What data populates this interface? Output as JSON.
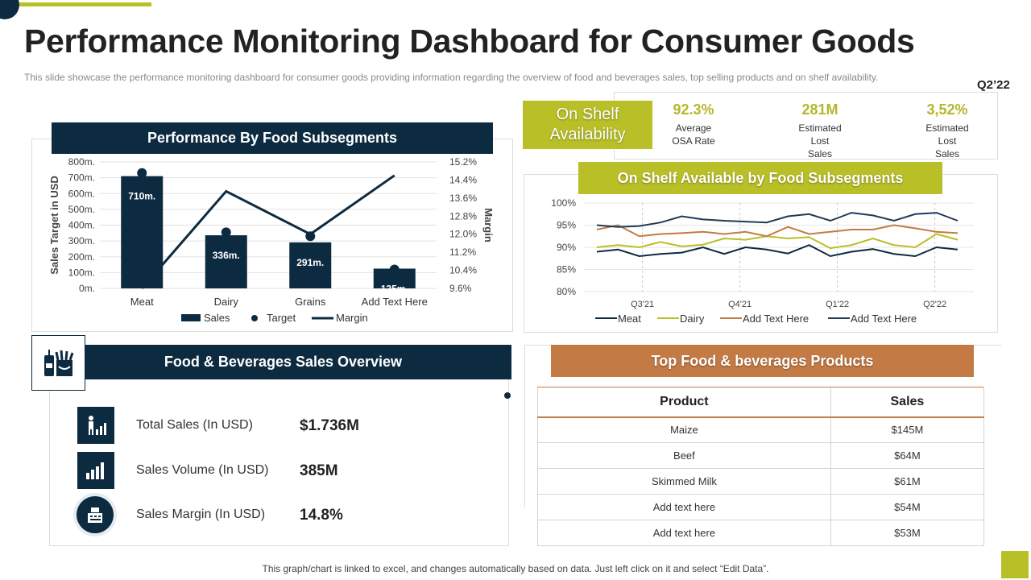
{
  "page": {
    "title": "Performance Monitoring Dashboard for Consumer Goods",
    "subtitle": "This slide showcase the performance  monitoring dashboard for consumer goods providing  information regarding the overview  of food and beverages  sales, top selling products and on shelf availability.",
    "quarter": "Q2’22",
    "footer": "This graph/chart is linked to excel, and changes automatically based on data. Just left click on it and select “Edit Data”."
  },
  "colors": {
    "navy": "#0d2b40",
    "olive": "#b9bf27",
    "orange": "#c47a44"
  },
  "performance_panel": {
    "title": "Performance By Food Subsegments"
  },
  "osa": {
    "box_line1": "On Shelf",
    "box_line2": "Availability",
    "kpis": [
      {
        "value": "92.3%",
        "label1": "Average",
        "label2": "OSA Rate",
        "label3": ""
      },
      {
        "value": "281M",
        "label1": "Estimated",
        "label2": "Lost",
        "label3": "Sales"
      },
      {
        "value": "3,52%",
        "label1": "Estimated",
        "label2": "Lost",
        "label3": "Sales"
      }
    ],
    "subsegments_title": "On Shelf  Available by Food Subsegments"
  },
  "overview": {
    "title": "Food & Beverages Sales Overview",
    "icon": "food-beverage-icon",
    "metrics": [
      {
        "label": "Total Sales (In USD)",
        "value": "$1.736M",
        "icon": "person-chart-icon"
      },
      {
        "label": "Sales Volume (In USD)",
        "value": "385M",
        "icon": "bar-growth-icon"
      },
      {
        "label": "Sales Margin (In USD)",
        "value": "14.8%",
        "icon": "cash-register-icon"
      }
    ]
  },
  "top_products": {
    "title": "Top Food & beverages Products",
    "headers": [
      "Product",
      "Sales"
    ],
    "rows": [
      [
        "Maize",
        "$145M"
      ],
      [
        "Beef",
        "$64M"
      ],
      [
        "Skimmed Milk",
        "$61M"
      ],
      [
        "Add text here",
        "$54M"
      ],
      [
        "Add text here",
        "$53M"
      ]
    ]
  },
  "chart_data": [
    {
      "type": "bar",
      "title": "Performance By Food Subsegments",
      "categories": [
        "Meat",
        "Dairy",
        "Grains",
        "Add Text Here"
      ],
      "series": [
        {
          "name": "Sales",
          "kind": "bar",
          "axis": "left",
          "values": [
            710,
            336,
            291,
            125
          ],
          "labels": [
            "710m.",
            "336m.",
            "291m.",
            "125m."
          ]
        },
        {
          "name": "Target",
          "kind": "marker",
          "axis": "left",
          "values": [
            730,
            355,
            330,
            120
          ]
        },
        {
          "name": "Margin",
          "kind": "line",
          "axis": "right",
          "values": [
            9.6,
            13.9,
            12.0,
            14.6
          ]
        }
      ],
      "ylabel": "Sales Target in USD",
      "y2label": "Margin",
      "ylim": [
        0,
        800
      ],
      "y2lim": [
        9.6,
        15.2
      ],
      "yticks": [
        "0m.",
        "100m.",
        "200m.",
        "300m.",
        "400m.",
        "500m.",
        "600m.",
        "700m.",
        "800m."
      ],
      "y2ticks": [
        "9.6%",
        "10.4%",
        "11.2%",
        "12.0%",
        "12.8%",
        "13.6%",
        "14.4%",
        "15.2%"
      ],
      "legend": [
        "Sales",
        "Target",
        "Margin"
      ]
    },
    {
      "type": "line",
      "title": "On Shelf  Available by Food Subsegments",
      "x_count": 21,
      "xticks": [
        {
          "index": 3,
          "label": "Q3'21"
        },
        {
          "index": 8,
          "label": "Q4'21"
        },
        {
          "index": 13,
          "label": "Q1'22"
        },
        {
          "index": 18,
          "label": "Q2'22"
        }
      ],
      "ylim": [
        80,
        100
      ],
      "yticks": [
        "80%",
        "85%",
        "90%",
        "95%",
        "100%"
      ],
      "series": [
        {
          "name": "Meat",
          "color": "#0d2b40",
          "values": [
            89,
            89.5,
            88,
            88.5,
            88.8,
            90,
            88.5,
            90,
            89.5,
            88.6,
            90.5,
            88,
            89,
            89.6,
            88.5,
            88,
            90,
            89.5
          ]
        },
        {
          "name": "Dairy",
          "color": "#b9bf27",
          "values": [
            90,
            90.5,
            90,
            91.2,
            90.2,
            90.6,
            92,
            91.7,
            92.5,
            92,
            92.3,
            89.8,
            90.5,
            92,
            90.5,
            90,
            93,
            91.7
          ]
        },
        {
          "name": "Add Text Here",
          "color": "#c47a44",
          "values": [
            94,
            95,
            92.5,
            93,
            93.2,
            93.5,
            93,
            93.5,
            92.5,
            94.6,
            93,
            93.5,
            94,
            94,
            95,
            94.3,
            93.5,
            93.2
          ]
        },
        {
          "name": "Add  Text Here",
          "color": "#1f3b57",
          "values": [
            95,
            94.6,
            94.8,
            95.6,
            97,
            96.3,
            96,
            95.8,
            95.6,
            97,
            97.5,
            96,
            97.8,
            97.2,
            96,
            97.5,
            97.8,
            96
          ]
        }
      ],
      "legend": [
        "Meat",
        "Dairy",
        "Add Text Here",
        "Add  Text Here"
      ]
    }
  ]
}
